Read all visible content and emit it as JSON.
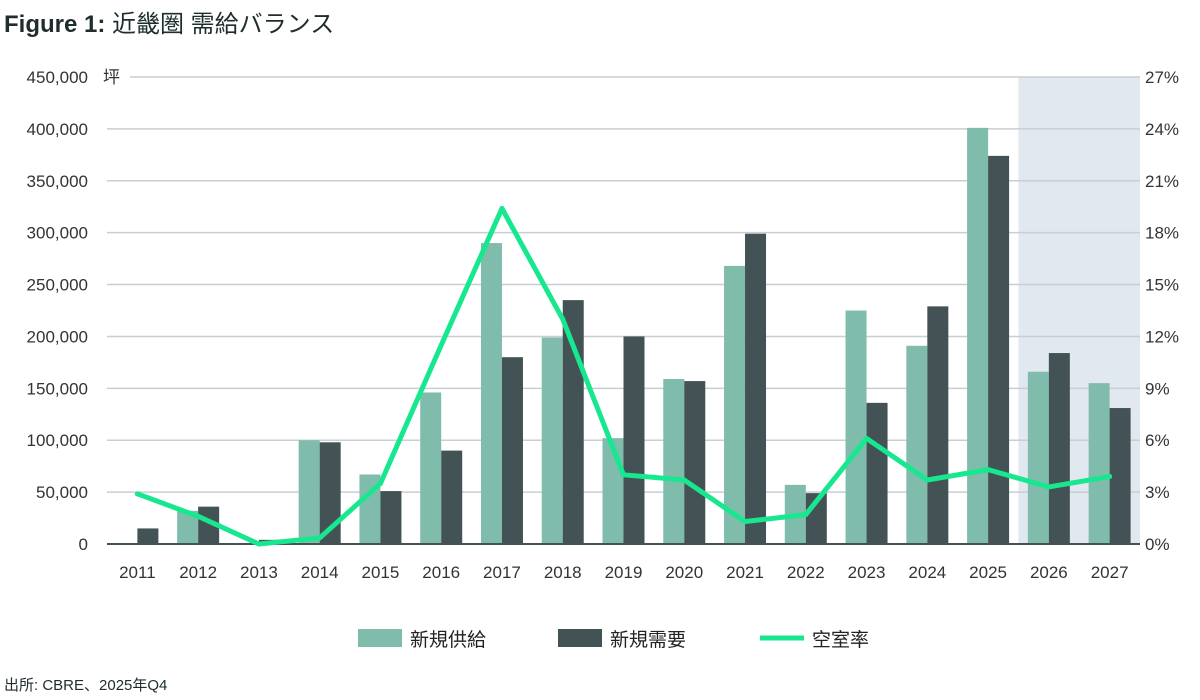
{
  "title_prefix": "Figure 1:",
  "title_text": "近畿圏 需給バランス",
  "source": "出所: CBRE、2025年Q4",
  "colors": {
    "supply": "#80bcac",
    "demand": "#435254",
    "vacancy": "#17e88f",
    "grid": "#c8ced2",
    "forecast_shade": "#e1e8ef"
  },
  "chart_data": {
    "type": "bar",
    "title": "近畿圏 需給バランス",
    "categories": [
      "2011",
      "2012",
      "2013",
      "2014",
      "2015",
      "2016",
      "2017",
      "2018",
      "2019",
      "2020",
      "2021",
      "2022",
      "2023",
      "2024",
      "2025",
      "2026",
      "2027"
    ],
    "left_unit": "坪",
    "ylim": [
      0,
      450000
    ],
    "yticks": [
      "0",
      "50,000",
      "100,000",
      "150,000",
      "200,000",
      "250,000",
      "300,000",
      "350,000",
      "400,000",
      "450,000"
    ],
    "y2lim": [
      0,
      27
    ],
    "y2ticks": [
      "0%",
      "3%",
      "6%",
      "9%",
      "12%",
      "15%",
      "18%",
      "21%",
      "24%",
      "27%"
    ],
    "forecast_categories": [
      "2026",
      "2027"
    ],
    "series": [
      {
        "name": "新規供給",
        "type": "bar",
        "values": [
          0,
          32000,
          0,
          100000,
          67000,
          146000,
          290000,
          199000,
          102000,
          159000,
          268000,
          57000,
          225000,
          191000,
          401000,
          166000,
          155000
        ]
      },
      {
        "name": "新規需要",
        "type": "bar",
        "values": [
          15000,
          36000,
          4000,
          98000,
          51000,
          90000,
          180000,
          235000,
          200000,
          157000,
          299000,
          49000,
          136000,
          229000,
          374000,
          184000,
          131000
        ]
      },
      {
        "name": "空室率",
        "type": "line",
        "axis": "right",
        "values": [
          2.9,
          1.6,
          0.0,
          0.35,
          3.5,
          11.5,
          19.4,
          13.0,
          4.0,
          3.7,
          1.3,
          1.7,
          6.1,
          3.7,
          4.3,
          3.3,
          3.9
        ]
      }
    ],
    "legend_position": "bottom"
  }
}
